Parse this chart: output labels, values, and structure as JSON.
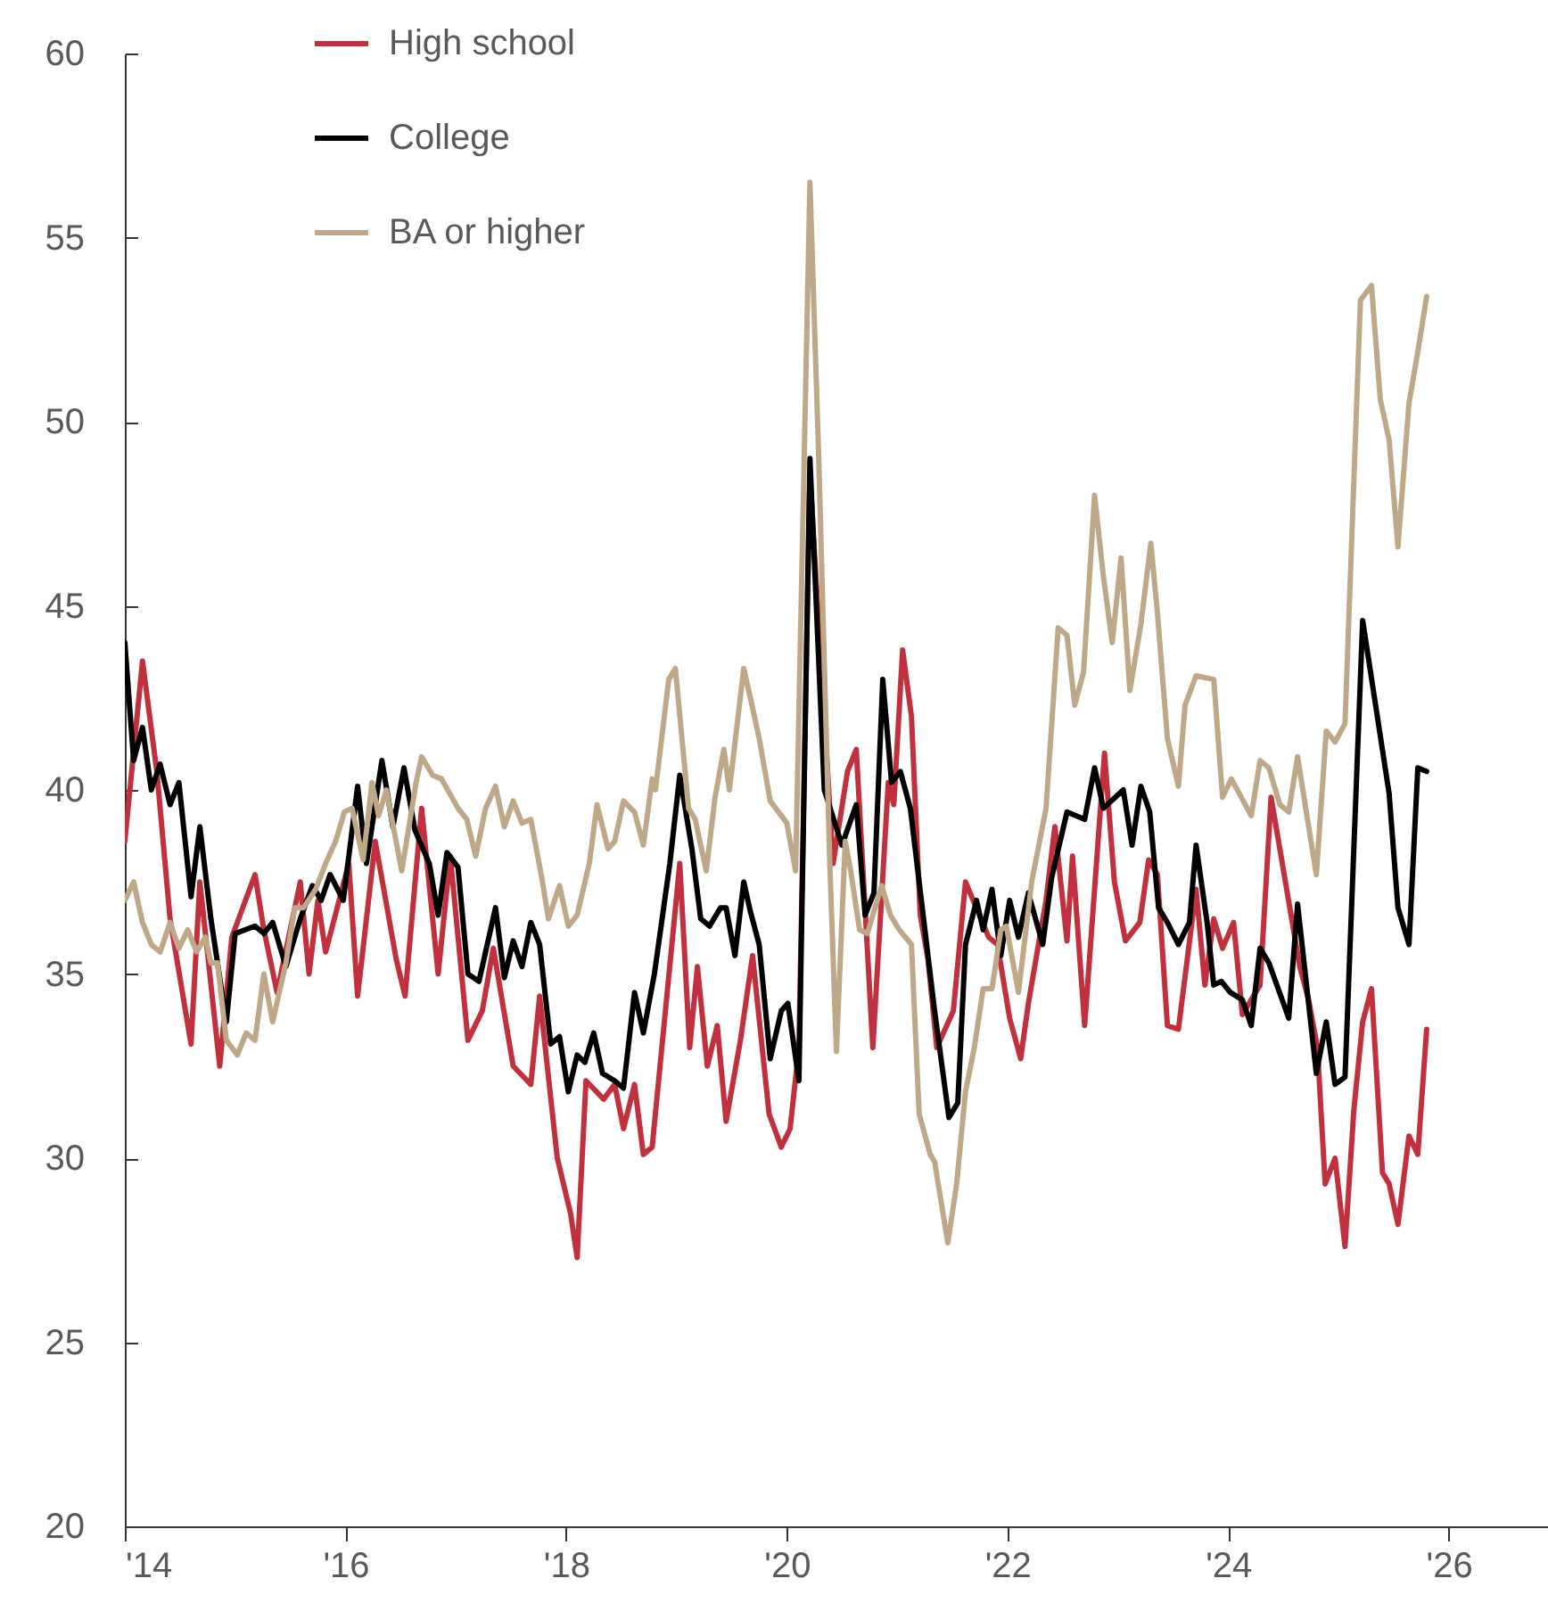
{
  "chart_data": {
    "type": "line",
    "legend": "top left",
    "grid": false,
    "line_style": "solid",
    "marker": "none",
    "xlim": [
      2014,
      2026.9
    ],
    "xticks": [
      {
        "value": 2014,
        "label": "'14"
      },
      {
        "value": 2016,
        "label": "'16"
      },
      {
        "value": 2018,
        "label": "'18"
      },
      {
        "value": 2020,
        "label": "'20"
      },
      {
        "value": 2022,
        "label": "'22"
      },
      {
        "value": 2024,
        "label": "'24"
      },
      {
        "value": 2026,
        "label": "'26"
      }
    ],
    "ylim": [
      20,
      60
    ],
    "yticks": [
      20,
      25,
      30,
      35,
      40,
      45,
      50,
      55,
      60
    ],
    "series": [
      {
        "name": "High school",
        "color": "#c0313d",
        "x": [
          2014.0,
          2014.16,
          2014.29,
          2014.41,
          2014.6,
          2014.68,
          2014.86,
          2014.97,
          2015.18,
          2015.26,
          2015.38,
          2015.59,
          2015.67,
          2015.75,
          2015.82,
          2016.03,
          2016.11,
          2016.27,
          2016.46,
          2016.54,
          2016.69,
          2016.84,
          2016.95,
          2017.11,
          2017.24,
          2017.34,
          2017.52,
          2017.68,
          2017.76,
          2017.92,
          2018.04,
          2018.1,
          2018.18,
          2018.34,
          2018.44,
          2018.52,
          2018.62,
          2018.7,
          2018.78,
          2018.9,
          2019.03,
          2019.12,
          2019.19,
          2019.28,
          2019.37,
          2019.45,
          2019.58,
          2019.69,
          2019.84,
          2019.95,
          2020.03,
          2020.11,
          2020.21,
          2020.42,
          2020.55,
          2020.63,
          2020.78,
          2020.92,
          2020.97,
          2021.05,
          2021.13,
          2021.21,
          2021.28,
          2021.36,
          2021.51,
          2021.62,
          2021.83,
          2021.91,
          2022.02,
          2022.12,
          2022.19,
          2022.35,
          2022.43,
          2022.54,
          2022.59,
          2022.7,
          2022.88,
          2022.97,
          2023.07,
          2023.2,
          2023.28,
          2023.36,
          2023.45,
          2023.55,
          2023.71,
          2023.79,
          2023.87,
          2023.95,
          2024.05,
          2024.13,
          2024.29,
          2024.39,
          2024.65,
          2024.73,
          2024.81,
          2024.88,
          2024.97,
          2025.06,
          2025.14,
          2025.22,
          2025.3,
          2025.4,
          2025.46,
          2025.54,
          2025.64,
          2025.72,
          2025.8
        ],
        "values": [
          38.6,
          43.5,
          40.5,
          36.5,
          33.1,
          37.5,
          32.5,
          36.0,
          37.7,
          36.2,
          34.5,
          37.5,
          35.0,
          37.0,
          35.6,
          38.0,
          34.4,
          38.6,
          35.4,
          34.4,
          39.5,
          35.0,
          38.2,
          33.2,
          34.0,
          35.7,
          32.5,
          32.0,
          34.4,
          30.0,
          28.5,
          27.3,
          32.1,
          31.6,
          32.0,
          30.8,
          32.0,
          30.1,
          30.3,
          34.0,
          38.0,
          33.0,
          35.2,
          32.5,
          33.6,
          31.0,
          33.2,
          35.5,
          31.2,
          30.3,
          30.8,
          33.0,
          48.5,
          38.0,
          40.5,
          41.1,
          33.0,
          40.2,
          39.6,
          43.8,
          42.0,
          36.6,
          35.4,
          33.0,
          34.0,
          37.5,
          36.0,
          35.8,
          33.8,
          32.7,
          34.2,
          37.0,
          39.0,
          35.9,
          38.2,
          33.6,
          41.0,
          37.5,
          35.9,
          36.4,
          38.1,
          37.7,
          33.6,
          33.5,
          37.3,
          34.7,
          36.5,
          35.7,
          36.4,
          33.9,
          34.7,
          39.8,
          35.2,
          34.3,
          33.0,
          29.3,
          30.0,
          27.6,
          31.3,
          33.7,
          34.6,
          29.6,
          29.3,
          28.2,
          30.6,
          30.1,
          33.5
        ]
      },
      {
        "name": "College",
        "color": "#000000",
        "x": [
          2014.0,
          2014.08,
          2014.16,
          2014.24,
          2014.32,
          2014.41,
          2014.49,
          2014.6,
          2014.68,
          2014.78,
          2014.92,
          2015.0,
          2015.18,
          2015.26,
          2015.34,
          2015.46,
          2015.59,
          2015.7,
          2015.78,
          2015.86,
          2015.98,
          2016.11,
          2016.19,
          2016.33,
          2016.43,
          2016.53,
          2016.63,
          2016.76,
          2016.84,
          2016.92,
          2017.02,
          2017.11,
          2017.21,
          2017.36,
          2017.44,
          2017.52,
          2017.6,
          2017.68,
          2017.76,
          2017.86,
          2017.94,
          2018.02,
          2018.1,
          2018.17,
          2018.25,
          2018.33,
          2018.44,
          2018.52,
          2018.62,
          2018.7,
          2018.8,
          2018.94,
          2019.03,
          2019.14,
          2019.22,
          2019.3,
          2019.4,
          2019.45,
          2019.53,
          2019.61,
          2019.67,
          2019.75,
          2019.85,
          2019.95,
          2020.01,
          2020.11,
          2020.21,
          2020.34,
          2020.5,
          2020.63,
          2020.71,
          2020.79,
          2020.87,
          2020.95,
          2021.03,
          2021.12,
          2021.2,
          2021.34,
          2021.47,
          2021.55,
          2021.62,
          2021.72,
          2021.78,
          2021.86,
          2021.94,
          2022.02,
          2022.1,
          2022.19,
          2022.32,
          2022.4,
          2022.54,
          2022.7,
          2022.79,
          2022.87,
          2023.05,
          2023.13,
          2023.21,
          2023.29,
          2023.37,
          2023.45,
          2023.55,
          2023.65,
          2023.71,
          2023.81,
          2023.87,
          2023.94,
          2024.02,
          2024.13,
          2024.21,
          2024.29,
          2024.37,
          2024.55,
          2024.63,
          2024.8,
          2024.89,
          2024.97,
          2025.06,
          2025.22,
          2025.46,
          2025.54,
          2025.64,
          2025.72,
          2025.8
        ],
        "values": [
          44.0,
          40.8,
          41.7,
          40.0,
          40.7,
          39.6,
          40.2,
          37.1,
          39.0,
          36.5,
          33.7,
          36.1,
          36.3,
          36.1,
          36.4,
          35.2,
          36.5,
          37.4,
          37.0,
          37.7,
          37.0,
          40.1,
          38.0,
          40.8,
          39.0,
          40.6,
          38.9,
          38.0,
          36.6,
          38.3,
          37.9,
          35.0,
          34.8,
          36.8,
          34.9,
          35.9,
          35.2,
          36.4,
          35.8,
          33.1,
          33.3,
          31.8,
          32.8,
          32.6,
          33.4,
          32.3,
          32.1,
          31.9,
          34.5,
          33.4,
          35.0,
          38.0,
          40.4,
          38.4,
          36.5,
          36.3,
          36.8,
          36.8,
          35.5,
          37.5,
          36.7,
          35.8,
          32.7,
          34.0,
          34.2,
          32.1,
          49.0,
          40.0,
          38.5,
          39.6,
          36.6,
          37.2,
          43.0,
          40.2,
          40.5,
          39.5,
          37.5,
          34.0,
          31.1,
          31.5,
          35.8,
          37.0,
          36.2,
          37.3,
          35.5,
          37.0,
          36.0,
          37.2,
          35.8,
          37.6,
          39.4,
          39.2,
          40.6,
          39.5,
          40.0,
          38.5,
          40.1,
          39.4,
          36.8,
          36.4,
          35.8,
          36.4,
          38.5,
          36.4,
          34.7,
          34.8,
          34.5,
          34.3,
          33.6,
          35.7,
          35.3,
          33.8,
          36.9,
          32.3,
          33.7,
          32.0,
          32.2,
          44.6,
          39.9,
          36.8,
          35.8,
          40.6,
          40.5
        ]
      },
      {
        "name": "BA or higher",
        "color": "#bfa888",
        "x": [
          2014.0,
          2014.08,
          2014.16,
          2014.24,
          2014.32,
          2014.41,
          2014.49,
          2014.57,
          2014.65,
          2014.73,
          2014.78,
          2014.84,
          2014.92,
          2015.02,
          2015.1,
          2015.18,
          2015.26,
          2015.34,
          2015.46,
          2015.54,
          2015.62,
          2015.73,
          2015.82,
          2015.91,
          2015.99,
          2016.06,
          2016.16,
          2016.24,
          2016.3,
          2016.37,
          2016.51,
          2016.64,
          2016.69,
          2016.79,
          2016.87,
          2017.02,
          2017.1,
          2017.18,
          2017.27,
          2017.36,
          2017.44,
          2017.52,
          2017.6,
          2017.68,
          2017.78,
          2017.84,
          2017.94,
          2018.02,
          2018.1,
          2018.21,
          2018.28,
          2018.38,
          2018.44,
          2018.52,
          2018.62,
          2018.7,
          2018.78,
          2018.81,
          2018.93,
          2018.99,
          2019.11,
          2019.17,
          2019.27,
          2019.35,
          2019.43,
          2019.48,
          2019.61,
          2019.67,
          2019.75,
          2019.85,
          2019.95,
          2020.0,
          2020.08,
          2020.21,
          2020.29,
          2020.39,
          2020.45,
          2020.53,
          2020.58,
          2020.66,
          2020.73,
          2020.86,
          2020.94,
          2021.02,
          2021.13,
          2021.2,
          2021.3,
          2021.34,
          2021.46,
          2021.54,
          2021.62,
          2021.7,
          2021.78,
          2021.86,
          2021.94,
          2021.99,
          2022.1,
          2022.22,
          2022.35,
          2022.46,
          2022.54,
          2022.61,
          2022.69,
          2022.79,
          2022.87,
          2022.95,
          2023.03,
          2023.11,
          2023.21,
          2023.3,
          2023.36,
          2023.45,
          2023.55,
          2023.61,
          2023.71,
          2023.87,
          2023.95,
          2024.03,
          2024.21,
          2024.29,
          2024.37,
          2024.47,
          2024.55,
          2024.63,
          2024.72,
          2024.8,
          2024.89,
          2024.97,
          2025.06,
          2025.2,
          2025.3,
          2025.38,
          2025.46,
          2025.54,
          2025.64,
          2025.72,
          2025.8
        ],
        "values": [
          37.0,
          37.5,
          36.4,
          35.8,
          35.6,
          36.4,
          35.7,
          36.2,
          35.6,
          36.0,
          35.3,
          35.3,
          33.2,
          32.8,
          33.4,
          33.2,
          35.0,
          33.7,
          35.3,
          36.8,
          36.8,
          37.3,
          38.0,
          38.6,
          39.4,
          39.5,
          38.1,
          40.2,
          39.3,
          40.0,
          37.8,
          40.2,
          40.9,
          40.4,
          40.3,
          39.5,
          39.2,
          38.2,
          39.5,
          40.1,
          39.0,
          39.7,
          39.1,
          39.2,
          37.6,
          36.5,
          37.4,
          36.3,
          36.6,
          38.0,
          39.6,
          38.4,
          38.6,
          39.7,
          39.4,
          38.5,
          40.3,
          40.0,
          43.0,
          43.3,
          39.5,
          39.2,
          37.8,
          39.8,
          41.1,
          40.0,
          43.3,
          42.5,
          41.4,
          39.7,
          39.3,
          39.1,
          37.8,
          56.5,
          49.0,
          38.0,
          32.9,
          38.6,
          37.8,
          36.2,
          36.1,
          37.4,
          36.6,
          36.2,
          35.8,
          31.2,
          30.1,
          29.9,
          27.7,
          29.3,
          31.8,
          33.0,
          34.6,
          34.6,
          36.2,
          36.3,
          34.5,
          37.5,
          39.5,
          44.4,
          44.2,
          42.3,
          43.2,
          48.0,
          45.8,
          44.0,
          46.3,
          42.7,
          44.5,
          46.7,
          44.8,
          41.4,
          40.1,
          42.3,
          43.1,
          43.0,
          39.8,
          40.3,
          39.3,
          40.8,
          40.6,
          39.6,
          39.4,
          40.9,
          39.2,
          37.7,
          41.6,
          41.3,
          41.8,
          53.3,
          53.7,
          50.6,
          49.5,
          46.6,
          50.5,
          51.9,
          53.4
        ]
      }
    ]
  }
}
